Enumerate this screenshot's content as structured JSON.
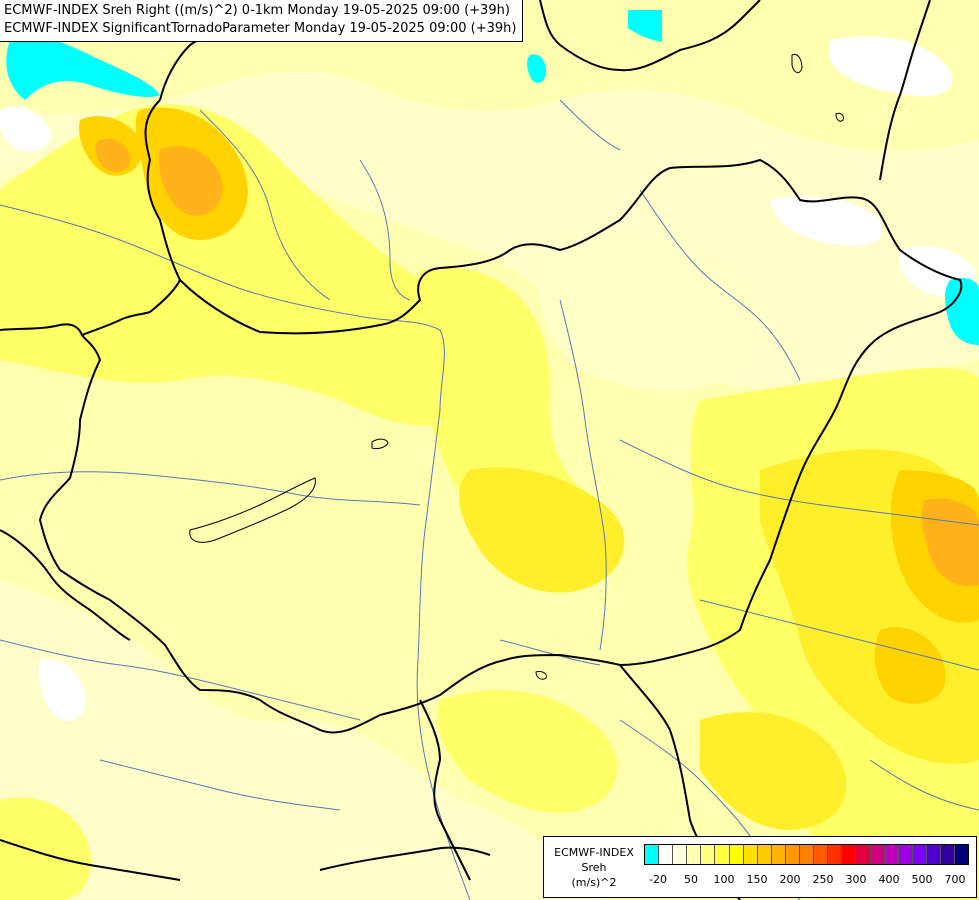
{
  "title": {
    "line1": "ECMWF-INDEX Sreh Right ((m/s)^2) 0-1km Monday 19-05-2025 09:00 (+39h)",
    "line2": "ECMWF-INDEX SignificantTornadoParameter Monday 19-05-2025 09:00 (+39h)"
  },
  "legend": {
    "source": "ECMWF-INDEX",
    "parameter": "Sreh",
    "unit": "(m/s)^2",
    "ticks": [
      "-20",
      "50",
      "100",
      "150",
      "200",
      "250",
      "300",
      "400",
      "500",
      "700"
    ],
    "colors": [
      "#00ffff",
      "#ffffff",
      "#ffffd9",
      "#ffffb3",
      "#ffff80",
      "#ffff40",
      "#ffff00",
      "#ffe000",
      "#ffc800",
      "#ffb000",
      "#ff9800",
      "#ff7f00",
      "#ff5a00",
      "#ff3000",
      "#ff0000",
      "#e00040",
      "#d00080",
      "#c000c0",
      "#a000e0",
      "#8000ff",
      "#5000d0",
      "#3000a0",
      "#000080"
    ]
  },
  "map_colors": {
    "background": "#fffdc8",
    "light_yellow": "#ffffb0",
    "yellow": "#ffff66",
    "strong_yellow": "#ffef2a",
    "orange": "#ffd200",
    "dark_orange": "#ffb21a",
    "cyan": "#00ffff",
    "white": "#ffffff",
    "border": "#000000",
    "river": "#5577bb"
  }
}
